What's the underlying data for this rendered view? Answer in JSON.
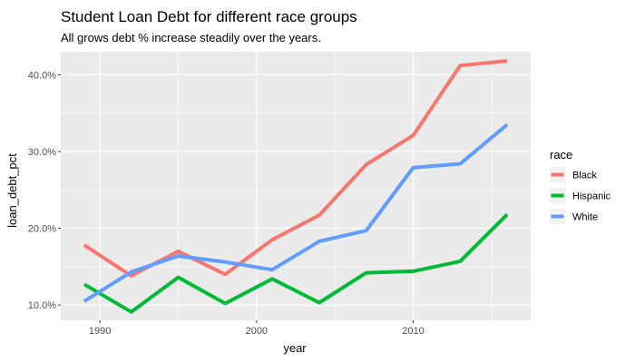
{
  "chart_data": {
    "type": "line",
    "title": "Student Loan Debt for different race groups",
    "subtitle": "All grows debt % increase steadily over the years.",
    "xlabel": "year",
    "ylabel": "loan_debt_pct",
    "xlim": [
      1987.5,
      2017.5
    ],
    "ylim": [
      8.0,
      43.0
    ],
    "x_ticks": [
      1990,
      2000,
      2010
    ],
    "y_ticks": [
      10,
      20,
      30,
      40
    ],
    "y_tick_labels": [
      "10.0%",
      "20.0%",
      "30.0%",
      "40.0%"
    ],
    "x": [
      1989,
      1992,
      1995,
      1998,
      2001,
      2004,
      2007,
      2010,
      2013,
      2016
    ],
    "grid": true,
    "legend": {
      "title": "race",
      "position": "right"
    },
    "series": [
      {
        "name": "Black",
        "color": "#F8766D",
        "values": [
          17.8,
          13.8,
          17.0,
          14.0,
          18.5,
          21.7,
          28.3,
          32.1,
          41.2,
          41.8
        ]
      },
      {
        "name": "Hispanic",
        "color": "#00BA38",
        "values": [
          12.7,
          9.1,
          13.6,
          10.2,
          13.4,
          10.3,
          14.2,
          14.4,
          15.7,
          21.8
        ]
      },
      {
        "name": "White",
        "color": "#619CFF",
        "values": [
          10.5,
          14.3,
          16.4,
          15.6,
          14.6,
          18.3,
          19.7,
          27.9,
          28.4,
          33.5
        ]
      }
    ]
  }
}
